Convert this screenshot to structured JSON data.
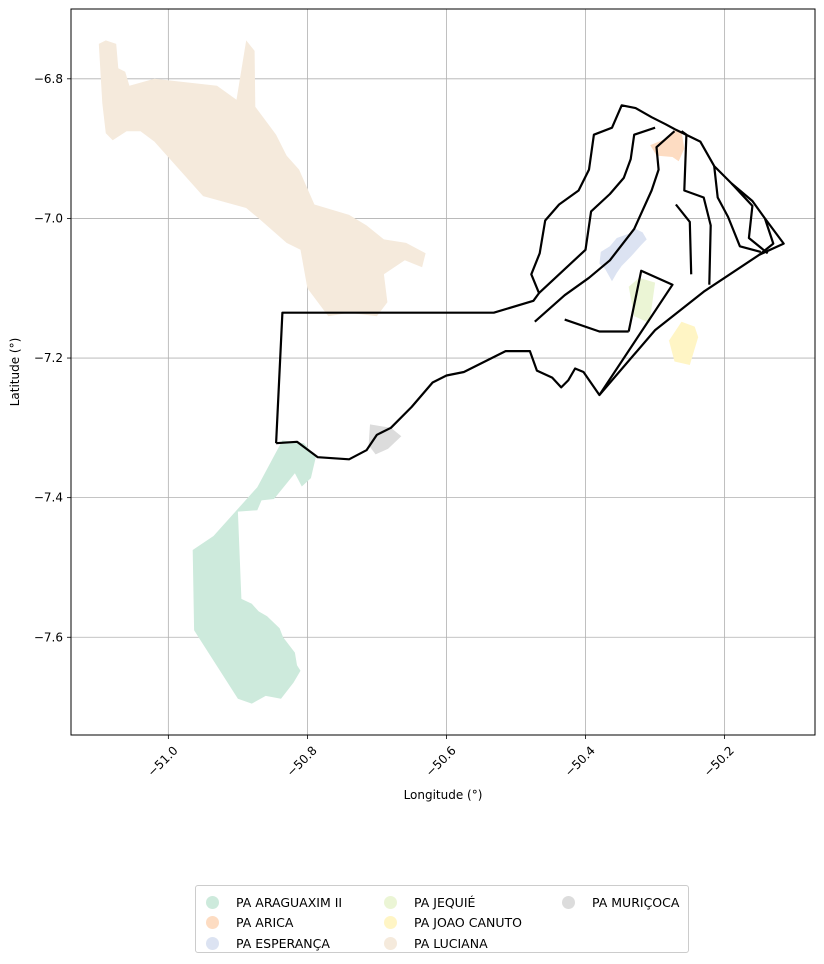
{
  "chart_data": {
    "type": "map",
    "xlabel": "Longitude (°)",
    "ylabel": "Latitude (°)",
    "xlim": [
      -51.14,
      -50.07
    ],
    "ylim": [
      -7.74,
      -6.7
    ],
    "x_ticks": [
      -51.0,
      -50.8,
      -50.6,
      -50.4,
      -50.2
    ],
    "y_ticks": [
      -6.8,
      -7.0,
      -7.2,
      -7.4,
      -7.6
    ],
    "x_tick_labels": [
      "−51.0",
      "−50.8",
      "−50.6",
      "−50.4",
      "−50.2"
    ],
    "y_tick_labels": [
      "−6.8",
      "−7.0",
      "−7.2",
      "−7.4",
      "−7.6"
    ],
    "grid": true,
    "legend_position": "bottom-center",
    "series": [
      {
        "name": "PA ARAGUAXIM II",
        "color": "#cdeadc",
        "polygon": [
          [
            -50.836,
            -7.318
          ],
          [
            -50.805,
            -7.322
          ],
          [
            -50.788,
            -7.342
          ],
          [
            -50.795,
            -7.372
          ],
          [
            -50.808,
            -7.384
          ],
          [
            -50.818,
            -7.365
          ],
          [
            -50.848,
            -7.402
          ],
          [
            -50.866,
            -7.404
          ],
          [
            -50.872,
            -7.418
          ],
          [
            -50.9,
            -7.42
          ],
          [
            -50.895,
            -7.545
          ],
          [
            -50.88,
            -7.552
          ],
          [
            -50.87,
            -7.563
          ],
          [
            -50.858,
            -7.57
          ],
          [
            -50.84,
            -7.587
          ],
          [
            -50.835,
            -7.6
          ],
          [
            -50.818,
            -7.622
          ],
          [
            -50.815,
            -7.64
          ],
          [
            -50.81,
            -7.648
          ],
          [
            -50.82,
            -7.665
          ],
          [
            -50.838,
            -7.688
          ],
          [
            -50.86,
            -7.684
          ],
          [
            -50.88,
            -7.695
          ],
          [
            -50.9,
            -7.688
          ],
          [
            -50.963,
            -7.59
          ],
          [
            -50.965,
            -7.475
          ],
          [
            -50.935,
            -7.455
          ],
          [
            -50.872,
            -7.385
          ]
        ]
      },
      {
        "name": "PA ARICA",
        "color": "#fddcc2",
        "polygon": [
          [
            -50.272,
            -6.873
          ],
          [
            -50.262,
            -6.875
          ],
          [
            -50.258,
            -6.9
          ],
          [
            -50.266,
            -6.918
          ],
          [
            -50.275,
            -6.912
          ],
          [
            -50.298,
            -6.91
          ],
          [
            -50.307,
            -6.895
          ],
          [
            -50.282,
            -6.885
          ]
        ]
      },
      {
        "name": "PA ESPERANÇA",
        "color": "#dce3f2",
        "polygon": [
          [
            -50.338,
            -7.022
          ],
          [
            -50.355,
            -7.028
          ],
          [
            -50.365,
            -7.04
          ],
          [
            -50.378,
            -7.048
          ],
          [
            -50.38,
            -7.065
          ],
          [
            -50.372,
            -7.072
          ],
          [
            -50.362,
            -7.09
          ],
          [
            -50.355,
            -7.078
          ],
          [
            -50.348,
            -7.068
          ],
          [
            -50.335,
            -7.055
          ],
          [
            -50.32,
            -7.038
          ],
          [
            -50.312,
            -7.03
          ],
          [
            -50.318,
            -7.02
          ],
          [
            -50.328,
            -7.015
          ]
        ]
      },
      {
        "name": "PA JEQUIÉ",
        "color": "#ebf5d5",
        "polygon": [
          [
            -50.323,
            -7.085
          ],
          [
            -50.3,
            -7.092
          ],
          [
            -50.308,
            -7.15
          ],
          [
            -50.33,
            -7.14
          ],
          [
            -50.338,
            -7.098
          ]
        ]
      },
      {
        "name": "PA JOAO CANUTO",
        "color": "#fff5c5",
        "polygon": [
          [
            -50.262,
            -7.148
          ],
          [
            -50.243,
            -7.155
          ],
          [
            -50.238,
            -7.17
          ],
          [
            -50.25,
            -7.21
          ],
          [
            -50.272,
            -7.205
          ],
          [
            -50.28,
            -7.175
          ]
        ]
      },
      {
        "name": "PA LUCIANA",
        "color": "#f5eadc",
        "polygon": [
          [
            -51.09,
            -6.745
          ],
          [
            -51.075,
            -6.75
          ],
          [
            -51.072,
            -6.785
          ],
          [
            -51.062,
            -6.79
          ],
          [
            -51.056,
            -6.81
          ],
          [
            -51.02,
            -6.8
          ],
          [
            -50.93,
            -6.81
          ],
          [
            -50.902,
            -6.83
          ],
          [
            -50.888,
            -6.745
          ],
          [
            -50.876,
            -6.76
          ],
          [
            -50.875,
            -6.84
          ],
          [
            -50.845,
            -6.88
          ],
          [
            -50.83,
            -6.91
          ],
          [
            -50.812,
            -6.93
          ],
          [
            -50.79,
            -6.98
          ],
          [
            -50.74,
            -6.995
          ],
          [
            -50.715,
            -7.01
          ],
          [
            -50.69,
            -7.03
          ],
          [
            -50.658,
            -7.035
          ],
          [
            -50.63,
            -7.05
          ],
          [
            -50.635,
            -7.07
          ],
          [
            -50.66,
            -7.06
          ],
          [
            -50.69,
            -7.08
          ],
          [
            -50.685,
            -7.12
          ],
          [
            -50.7,
            -7.14
          ],
          [
            -50.74,
            -7.135
          ],
          [
            -50.77,
            -7.14
          ],
          [
            -50.8,
            -7.1
          ],
          [
            -50.81,
            -7.045
          ],
          [
            -50.83,
            -7.035
          ],
          [
            -50.87,
            -7.0
          ],
          [
            -50.888,
            -6.985
          ],
          [
            -50.95,
            -6.968
          ],
          [
            -51.02,
            -6.89
          ],
          [
            -51.04,
            -6.875
          ],
          [
            -51.06,
            -6.875
          ],
          [
            -51.08,
            -6.888
          ],
          [
            -51.09,
            -6.878
          ],
          [
            -51.095,
            -6.835
          ],
          [
            -51.1,
            -6.75
          ]
        ]
      },
      {
        "name": "PA MURIÇOCA",
        "color": "#dcdcdc",
        "polygon": [
          [
            -50.71,
            -7.295
          ],
          [
            -50.68,
            -7.3
          ],
          [
            -50.665,
            -7.312
          ],
          [
            -50.684,
            -7.33
          ],
          [
            -50.702,
            -7.338
          ],
          [
            -50.712,
            -7.325
          ]
        ]
      }
    ],
    "outline_paths": [
      [
        [
          -50.845,
          -7.322
        ],
        [
          -50.836,
          -7.135
        ],
        [
          -50.532,
          -7.135
        ],
        [
          -50.475,
          -7.118
        ],
        [
          -50.467,
          -7.107
        ],
        [
          -50.478,
          -7.08
        ],
        [
          -50.466,
          -7.05
        ],
        [
          -50.458,
          -7.003
        ],
        [
          -50.438,
          -6.98
        ],
        [
          -50.41,
          -6.96
        ],
        [
          -50.395,
          -6.93
        ],
        [
          -50.388,
          -6.88
        ],
        [
          -50.362,
          -6.87
        ],
        [
          -50.348,
          -6.838
        ],
        [
          -50.328,
          -6.842
        ],
        [
          -50.305,
          -6.855
        ],
        [
          -50.285,
          -6.865
        ],
        [
          -50.27,
          -6.873
        ],
        [
          -50.235,
          -6.89
        ],
        [
          -50.215,
          -6.925
        ],
        [
          -50.19,
          -6.95
        ],
        [
          -50.16,
          -6.975
        ],
        [
          -50.142,
          -7.0
        ],
        [
          -50.115,
          -7.036
        ],
        [
          -50.15,
          -7.052
        ],
        [
          -50.23,
          -7.105
        ],
        [
          -50.3,
          -7.16
        ],
        [
          -50.38,
          -7.253
        ],
        [
          -50.403,
          -7.22
        ],
        [
          -50.415,
          -7.215
        ],
        [
          -50.425,
          -7.232
        ],
        [
          -50.435,
          -7.242
        ],
        [
          -50.448,
          -7.228
        ],
        [
          -50.47,
          -7.218
        ],
        [
          -50.48,
          -7.19
        ],
        [
          -50.515,
          -7.19
        ],
        [
          -50.575,
          -7.22
        ],
        [
          -50.6,
          -7.225
        ],
        [
          -50.62,
          -7.235
        ],
        [
          -50.65,
          -7.27
        ],
        [
          -50.68,
          -7.3
        ],
        [
          -50.7,
          -7.31
        ],
        [
          -50.715,
          -7.332
        ],
        [
          -50.74,
          -7.345
        ],
        [
          -50.785,
          -7.342
        ],
        [
          -50.815,
          -7.32
        ],
        [
          -50.845,
          -7.322
        ]
      ],
      [
        [
          -50.467,
          -7.107
        ],
        [
          -50.4,
          -7.045
        ],
        [
          -50.392,
          -6.99
        ],
        [
          -50.365,
          -6.965
        ],
        [
          -50.345,
          -6.942
        ],
        [
          -50.335,
          -6.915
        ],
        [
          -50.33,
          -6.88
        ],
        [
          -50.3,
          -6.87
        ]
      ],
      [
        [
          -50.473,
          -7.148
        ],
        [
          -50.43,
          -7.11
        ],
        [
          -50.395,
          -7.085
        ],
        [
          -50.365,
          -7.06
        ],
        [
          -50.33,
          -7.015
        ],
        [
          -50.305,
          -6.96
        ],
        [
          -50.295,
          -6.93
        ],
        [
          -50.298,
          -6.898
        ],
        [
          -50.272,
          -6.875
        ]
      ],
      [
        [
          -50.43,
          -7.145
        ],
        [
          -50.38,
          -7.162
        ],
        [
          -50.338,
          -7.162
        ]
      ],
      [
        [
          -50.338,
          -7.162
        ],
        [
          -50.32,
          -7.075
        ],
        [
          -50.275,
          -7.095
        ],
        [
          -50.38,
          -7.253
        ]
      ],
      [
        [
          -50.262,
          -6.875
        ],
        [
          -50.255,
          -6.88
        ],
        [
          -50.258,
          -6.96
        ],
        [
          -50.23,
          -6.97
        ],
        [
          -50.22,
          -7.01
        ],
        [
          -50.222,
          -7.095
        ]
      ],
      [
        [
          -50.27,
          -6.98
        ],
        [
          -50.25,
          -7.005
        ],
        [
          -50.248,
          -7.08
        ]
      ],
      [
        [
          -50.215,
          -6.925
        ],
        [
          -50.21,
          -6.97
        ],
        [
          -50.195,
          -6.998
        ],
        [
          -50.178,
          -7.04
        ],
        [
          -50.148,
          -7.048
        ]
      ],
      [
        [
          -50.19,
          -6.95
        ],
        [
          -50.16,
          -6.982
        ],
        [
          -50.165,
          -7.028
        ],
        [
          -50.138,
          -7.05
        ]
      ],
      [
        [
          -50.142,
          -7.0
        ],
        [
          -50.13,
          -7.036
        ],
        [
          -50.15,
          -7.052
        ]
      ]
    ]
  }
}
